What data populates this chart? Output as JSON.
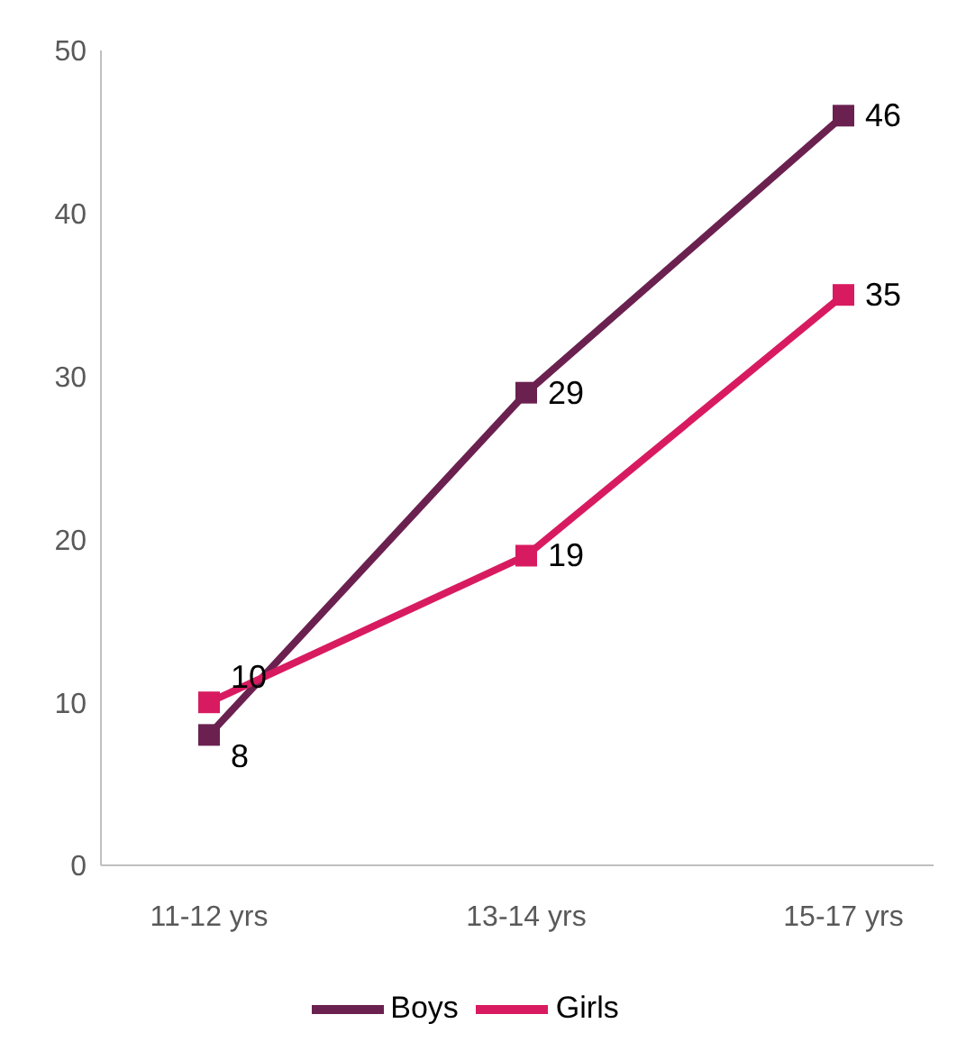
{
  "chart_data": {
    "type": "line",
    "categories": [
      "11-12 yrs",
      "13-14 yrs",
      "15-17 yrs"
    ],
    "series": [
      {
        "name": "Boys",
        "color": "#6b2150",
        "values": [
          8,
          29,
          46
        ]
      },
      {
        "name": "Girls",
        "color": "#d81b60",
        "values": [
          10,
          19,
          35
        ]
      }
    ],
    "ylim": [
      0,
      50
    ],
    "yticks": [
      0,
      10,
      20,
      30,
      40,
      50
    ],
    "grid": false,
    "legend": "bottom",
    "marker": "square",
    "line_style": "solid",
    "data_labels": true
  }
}
